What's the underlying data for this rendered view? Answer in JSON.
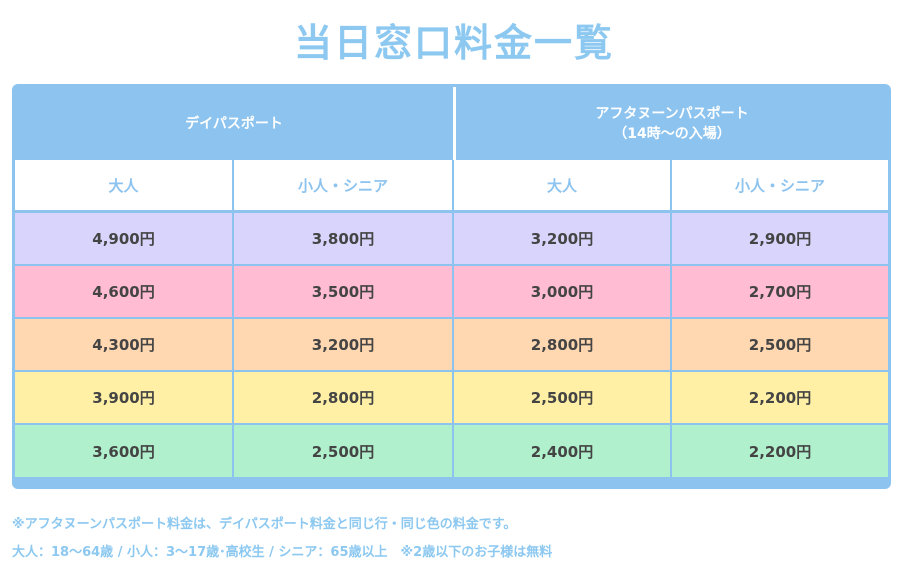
{
  "title": "当日窓口料金一覧",
  "header": {
    "day_pass": "デイパスポート",
    "afternoon_pass_line1": "アフタヌーンパスポート",
    "afternoon_pass_line2": "（14時〜の入場）"
  },
  "subheader": [
    "大人",
    "小人・シニア",
    "大人",
    "小人・シニア"
  ],
  "rows": [
    {
      "color": "#d9d4fc",
      "values": [
        "4,900円",
        "3,800円",
        "3,200円",
        "2,900円"
      ]
    },
    {
      "color": "#ffbcd3",
      "values": [
        "4,600円",
        "3,500円",
        "3,000円",
        "2,700円"
      ]
    },
    {
      "color": "#ffd7b0",
      "values": [
        "4,300円",
        "3,200円",
        "2,800円",
        "2,500円"
      ]
    },
    {
      "color": "#fff0a6",
      "values": [
        "3,900円",
        "2,800円",
        "2,500円",
        "2,200円"
      ]
    },
    {
      "color": "#b0f0cc",
      "values": [
        "3,600円",
        "2,500円",
        "2,400円",
        "2,200円"
      ]
    }
  ],
  "notes": {
    "line1": "※アフタヌーンパスポート料金は、デイパスポート料金と同じ行・同じ色の料金です。",
    "line2": "大人：18〜64歳 / 小人：3〜17歳･高校生 / シニア：65歳以上　※2歳以下のお子様は無料"
  },
  "colors": {
    "accent": "#8cc3ef",
    "title": "#8cc8f0"
  }
}
